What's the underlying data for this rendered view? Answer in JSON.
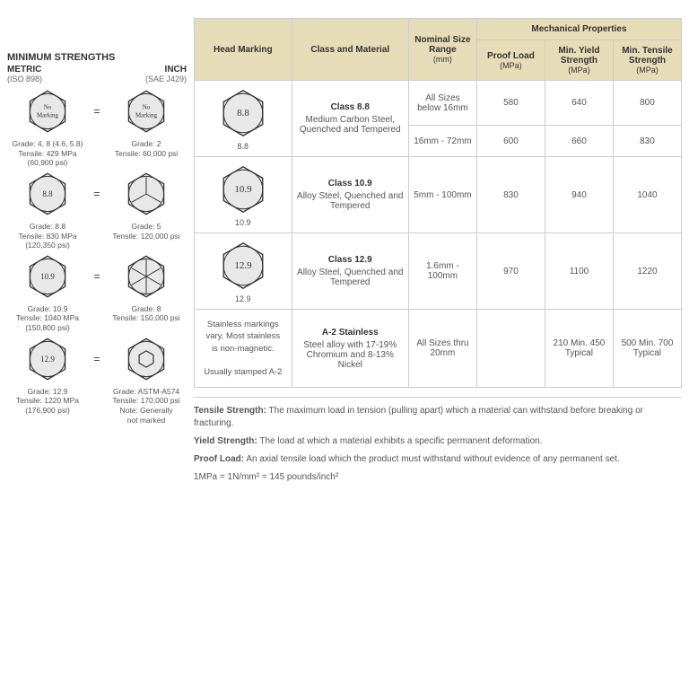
{
  "left": {
    "title": "MINIMUM STRENGTHS",
    "metric_label": "METRIC",
    "metric_sub": "(ISO 898)",
    "inch_label": "INCH",
    "inch_sub": "(SAE J429)",
    "rows": [
      {
        "metric_mark": "No\nMarking",
        "metric_caption": "Grade: 4, 8 (4.6, 5.8)\nTensile: 429 MPa\n(60,900 psi)",
        "inch_mark": "No\nMarking",
        "inch_caption": "Grade: 2\nTensile: 60,000 psi",
        "inch_lines": 0
      },
      {
        "metric_mark": "8.8",
        "metric_caption": "Grade: 8.8\nTensile: 830 MPa\n(120,350 psi)",
        "inch_mark": "",
        "inch_caption": "Grade: 5\nTensile: 120,000 psi",
        "inch_lines": 3
      },
      {
        "metric_mark": "10.9",
        "metric_caption": "Grade: 10.9\nTensile: 1040 MPa\n(150,800 psi)",
        "inch_mark": "",
        "inch_caption": "Grade: 8\nTensile: 150,000 psi",
        "inch_lines": 6
      },
      {
        "metric_mark": "12.9",
        "metric_caption": "Grade: 12.9\nTensile: 1220 MPa\n(176,900 psi)",
        "inch_mark": "",
        "inch_caption": "Grade: ASTM-A574\nTensile: 170,000 psi\nNote: Generally\nnot marked",
        "inch_lines": 0,
        "inch_small_hex": true
      }
    ]
  },
  "table": {
    "headers": {
      "head_marking": "Head Marking",
      "class_material": "Class and Material",
      "nominal_size": "Nominal Size Range",
      "nominal_size_unit": "(mm)",
      "mech_props": "Mechanical Properties",
      "proof_load": "Proof Load",
      "proof_load_unit": "(MPa)",
      "min_yield": "Min. Yield Strength",
      "min_yield_unit": "(MPa)",
      "min_tensile": "Min. Tensile Strength",
      "min_tensile_unit": "(MPa)"
    },
    "rows": [
      {
        "mark": "8.8",
        "mark_label": "8.8",
        "class_name": "Class 8.8",
        "material": "Medium Carbon Steel, Quenched and Tempered",
        "subrows": [
          {
            "size": "All Sizes below 16mm",
            "proof": "580",
            "yield": "640",
            "tensile": "800"
          },
          {
            "size": "16mm - 72mm",
            "proof": "600",
            "yield": "660",
            "tensile": "830"
          }
        ]
      },
      {
        "mark": "10.9",
        "mark_label": "10.9",
        "class_name": "Class 10.9",
        "material": "Alloy Steel, Quenched and Tempered",
        "subrows": [
          {
            "size": "5mm - 100mm",
            "proof": "830",
            "yield": "940",
            "tensile": "1040"
          }
        ]
      },
      {
        "mark": "12.9",
        "mark_label": "12.9",
        "class_name": "Class 12.9",
        "material": "Alloy Steel, Quenched and Tempered",
        "subrows": [
          {
            "size": "1.6mm - 100mm",
            "proof": "970",
            "yield": "1100",
            "tensile": "1220"
          }
        ]
      },
      {
        "marking_note": "Stainless markings vary. Most stainless is non-magnetic.\n\nUsually stamped A-2",
        "class_name": "A-2 Stainless",
        "material": "Steel alloy with 17-19% Chromium and 8-13% Nickel",
        "subrows": [
          {
            "size": "All Sizes thru 20mm",
            "proof": "",
            "yield": "210 Min. 450 Typical",
            "tensile": "500 Min. 700 Typical"
          }
        ]
      }
    ]
  },
  "definitions": {
    "tensile_label": "Tensile Strength:",
    "tensile_text": " The maximum load in tension (pulling apart) which a material can withstand before breaking or fracturing.",
    "yield_label": "Yield Strength:",
    "yield_text": " The load at which a material exhibits a specific permanent deformation.",
    "proof_label": "Proof Load:",
    "proof_text": " An axial tensile load which the product must withstand without evidence of any permanent set.",
    "conversion": "1MPa = 1N/mm² = 145 pounds/inch²"
  },
  "colors": {
    "header_bg": "#e6dcb8",
    "border": "#cccccc",
    "hex_fill": "#e8e8e8",
    "hex_stroke": "#333333"
  }
}
